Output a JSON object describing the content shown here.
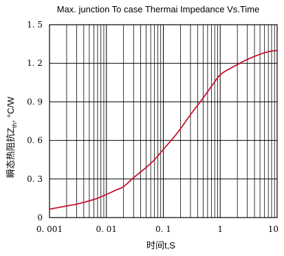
{
  "chart_data": {
    "type": "line",
    "title": "Max. junction To case Thermai Impedance Vs.Time",
    "xlabel": "时间t,S",
    "ylabel_main": "瞬态热阻抗Z",
    "ylabel_sub": "th",
    "ylabel_unit": ", °C/W",
    "x_scale": "log",
    "xlim": [
      0.001,
      10
    ],
    "ylim": [
      0,
      1.5
    ],
    "grid": true,
    "line_color": "#c8102e",
    "x_ticks": [
      {
        "value": 0.001,
        "label": "0. 001"
      },
      {
        "value": 0.01,
        "label": "0. 01"
      },
      {
        "value": 0.1,
        "label": "0. 1"
      },
      {
        "value": 1,
        "label": "1"
      },
      {
        "value": 10,
        "label": "10"
      }
    ],
    "y_ticks": [
      {
        "value": 0,
        "label": "0"
      },
      {
        "value": 0.3,
        "label": "0. 3"
      },
      {
        "value": 0.6,
        "label": "0. 6"
      },
      {
        "value": 0.9,
        "label": "0. 9"
      },
      {
        "value": 1.2,
        "label": "1. 2"
      },
      {
        "value": 1.5,
        "label": "1. 5"
      }
    ],
    "series": [
      {
        "x": [
          0.001,
          0.0015,
          0.002,
          0.003,
          0.005,
          0.007,
          0.01,
          0.015,
          0.02,
          0.03,
          0.05,
          0.07,
          0.1,
          0.15,
          0.2,
          0.3,
          0.5,
          0.7,
          1,
          1.5,
          2,
          3,
          5,
          7,
          10
        ],
        "y": [
          0.065,
          0.08,
          0.09,
          0.105,
          0.13,
          0.15,
          0.18,
          0.215,
          0.24,
          0.31,
          0.39,
          0.45,
          0.53,
          0.62,
          0.69,
          0.8,
          0.93,
          1.02,
          1.11,
          1.16,
          1.19,
          1.23,
          1.27,
          1.29,
          1.3
        ]
      }
    ]
  }
}
